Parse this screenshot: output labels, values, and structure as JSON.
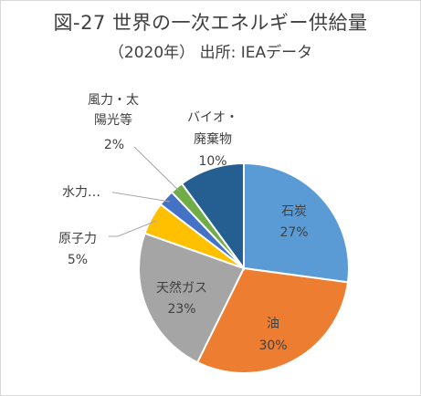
{
  "chart_data": {
    "type": "pie",
    "title": "図-27 世界の一次エネルギー供給量",
    "subtitle": "（2020年） 出所: IEAデータ",
    "slices": [
      {
        "name": "石炭",
        "value": 27,
        "label": "27%",
        "color": "#5b9bd5"
      },
      {
        "name": "油",
        "value": 30,
        "label": "30%",
        "color": "#ed7d31"
      },
      {
        "name": "天然ガス",
        "value": 23,
        "label": "23%",
        "color": "#a5a5a5"
      },
      {
        "name": "原子力",
        "value": 5,
        "label": "5%",
        "color": "#ffc000"
      },
      {
        "name": "水力…",
        "value": 2.5,
        "label": "",
        "color": "#4472c4"
      },
      {
        "name": "風力・太陽光等",
        "value": 2,
        "label": "2%",
        "color": "#70ad47"
      },
      {
        "name": "バイオ・廃棄物",
        "value": 10,
        "label": "10%",
        "color": "#255e91"
      }
    ]
  }
}
